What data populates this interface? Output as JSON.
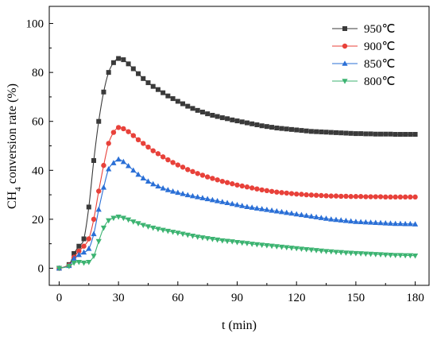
{
  "chart_data": {
    "type": "line",
    "xlabel": "t (min)",
    "ylabel_main": "CH",
    "ylabel_sub": "4",
    "ylabel_rest": " conversion rate   (%)",
    "xlim": [
      -5,
      187
    ],
    "ylim": [
      -7,
      107
    ],
    "xticks": [
      0,
      30,
      60,
      90,
      120,
      150,
      180
    ],
    "yticks": [
      0,
      20,
      40,
      60,
      80,
      100
    ],
    "grid": false,
    "legend_position": "top-right",
    "x": [
      0,
      5,
      7.5,
      10,
      12.5,
      15,
      17.5,
      20,
      22.5,
      25,
      27.5,
      30,
      32.5,
      35,
      37.5,
      40,
      42.5,
      45,
      47.5,
      50,
      52.5,
      55,
      57.5,
      60,
      62.5,
      65,
      67.5,
      70,
      72.5,
      75,
      77.5,
      80,
      82.5,
      85,
      87.5,
      90,
      92.5,
      95,
      97.5,
      100,
      102.5,
      105,
      107.5,
      110,
      112.5,
      115,
      117.5,
      120,
      122.5,
      125,
      127.5,
      130,
      132.5,
      135,
      137.5,
      140,
      142.5,
      145,
      147.5,
      150,
      152.5,
      155,
      157.5,
      160,
      162.5,
      165,
      167.5,
      170,
      172.5,
      175,
      177.5,
      180
    ],
    "series": [
      {
        "name": "950℃",
        "color": "#3a3a3a",
        "marker": "square",
        "values": [
          0,
          1.5,
          6,
          9,
          12,
          25,
          44,
          60,
          72,
          80,
          84,
          85.7,
          85.2,
          83.5,
          81.5,
          79.5,
          77.5,
          75.8,
          74.3,
          73,
          71.7,
          70.4,
          69.3,
          68.2,
          67.2,
          66.2,
          65.3,
          64.5,
          63.8,
          63.1,
          62.5,
          62,
          61.5,
          61.1,
          60.6,
          60.2,
          59.8,
          59.4,
          59.0,
          58.6,
          58.2,
          57.9,
          57.6,
          57.3,
          57.1,
          56.9,
          56.7,
          56.5,
          56.3,
          56.1,
          55.9,
          55.8,
          55.7,
          55.6,
          55.5,
          55.4,
          55.3,
          55.2,
          55.1,
          55.0,
          55.0,
          54.9,
          54.9,
          54.8,
          54.8,
          54.8,
          54.8,
          54.7,
          54.7,
          54.7,
          54.7,
          54.7
        ]
      },
      {
        "name": "900℃",
        "color": "#e8413a",
        "marker": "circle",
        "values": [
          0,
          1.2,
          4.5,
          7,
          9,
          12,
          20,
          31.5,
          42,
          51,
          55.5,
          57.5,
          57.0,
          55.8,
          54.2,
          52.5,
          51.0,
          49.5,
          48.0,
          46.8,
          45.5,
          44.3,
          43.2,
          42.2,
          41.3,
          40.3,
          39.5,
          38.7,
          38.0,
          37.3,
          36.7,
          36.1,
          35.5,
          35.0,
          34.5,
          34.0,
          33.6,
          33.2,
          32.8,
          32.4,
          32.0,
          31.7,
          31.4,
          31.1,
          30.9,
          30.7,
          30.5,
          30.3,
          30.2,
          30.0,
          29.9,
          29.8,
          29.7,
          29.6,
          29.5,
          29.5,
          29.4,
          29.4,
          29.3,
          29.3,
          29.3,
          29.2,
          29.2,
          29.2,
          29.2,
          29.1,
          29.1,
          29.1,
          29.1,
          29.1,
          29.1,
          29.1
        ]
      },
      {
        "name": "850℃",
        "color": "#2a6fd6",
        "marker": "triangle-up",
        "values": [
          0,
          1,
          4,
          5.5,
          6.5,
          8,
          14,
          24,
          33,
          40.5,
          43,
          44.5,
          43.5,
          41.8,
          40.0,
          38.3,
          36.8,
          35.5,
          34.4,
          33.5,
          32.7,
          32.0,
          31.4,
          30.9,
          30.4,
          29.9,
          29.5,
          29.1,
          28.7,
          28.3,
          27.9,
          27.5,
          27.1,
          26.7,
          26.3,
          25.9,
          25.5,
          25.1,
          24.8,
          24.5,
          24.2,
          23.9,
          23.6,
          23.3,
          23.0,
          22.7,
          22.4,
          22.1,
          21.8,
          21.5,
          21.2,
          20.9,
          20.6,
          20.3,
          20.0,
          19.8,
          19.6,
          19.4,
          19.2,
          19.0,
          18.9,
          18.8,
          18.7,
          18.6,
          18.5,
          18.4,
          18.3,
          18.2,
          18.2,
          18.1,
          18.1,
          18.0
        ]
      },
      {
        "name": "800℃",
        "color": "#3cb371",
        "marker": "triangle-down",
        "values": [
          0,
          0.8,
          2.2,
          2.5,
          2.2,
          2.5,
          5,
          11,
          16.5,
          19.5,
          20.5,
          21,
          20.5,
          19.8,
          19.0,
          18.3,
          17.6,
          17.0,
          16.5,
          16.0,
          15.6,
          15.2,
          14.8,
          14.4,
          14.0,
          13.6,
          13.2,
          12.8,
          12.5,
          12.2,
          11.9,
          11.6,
          11.3,
          11.1,
          10.9,
          10.6,
          10.4,
          10.2,
          9.9,
          9.7,
          9.5,
          9.3,
          9.1,
          8.9,
          8.7,
          8.5,
          8.3,
          8.1,
          7.9,
          7.7,
          7.5,
          7.3,
          7.1,
          6.9,
          6.8,
          6.6,
          6.5,
          6.3,
          6.2,
          6.1,
          6.0,
          5.9,
          5.8,
          5.7,
          5.6,
          5.5,
          5.4,
          5.3,
          5.3,
          5.2,
          5.2,
          5.1
        ]
      }
    ]
  }
}
